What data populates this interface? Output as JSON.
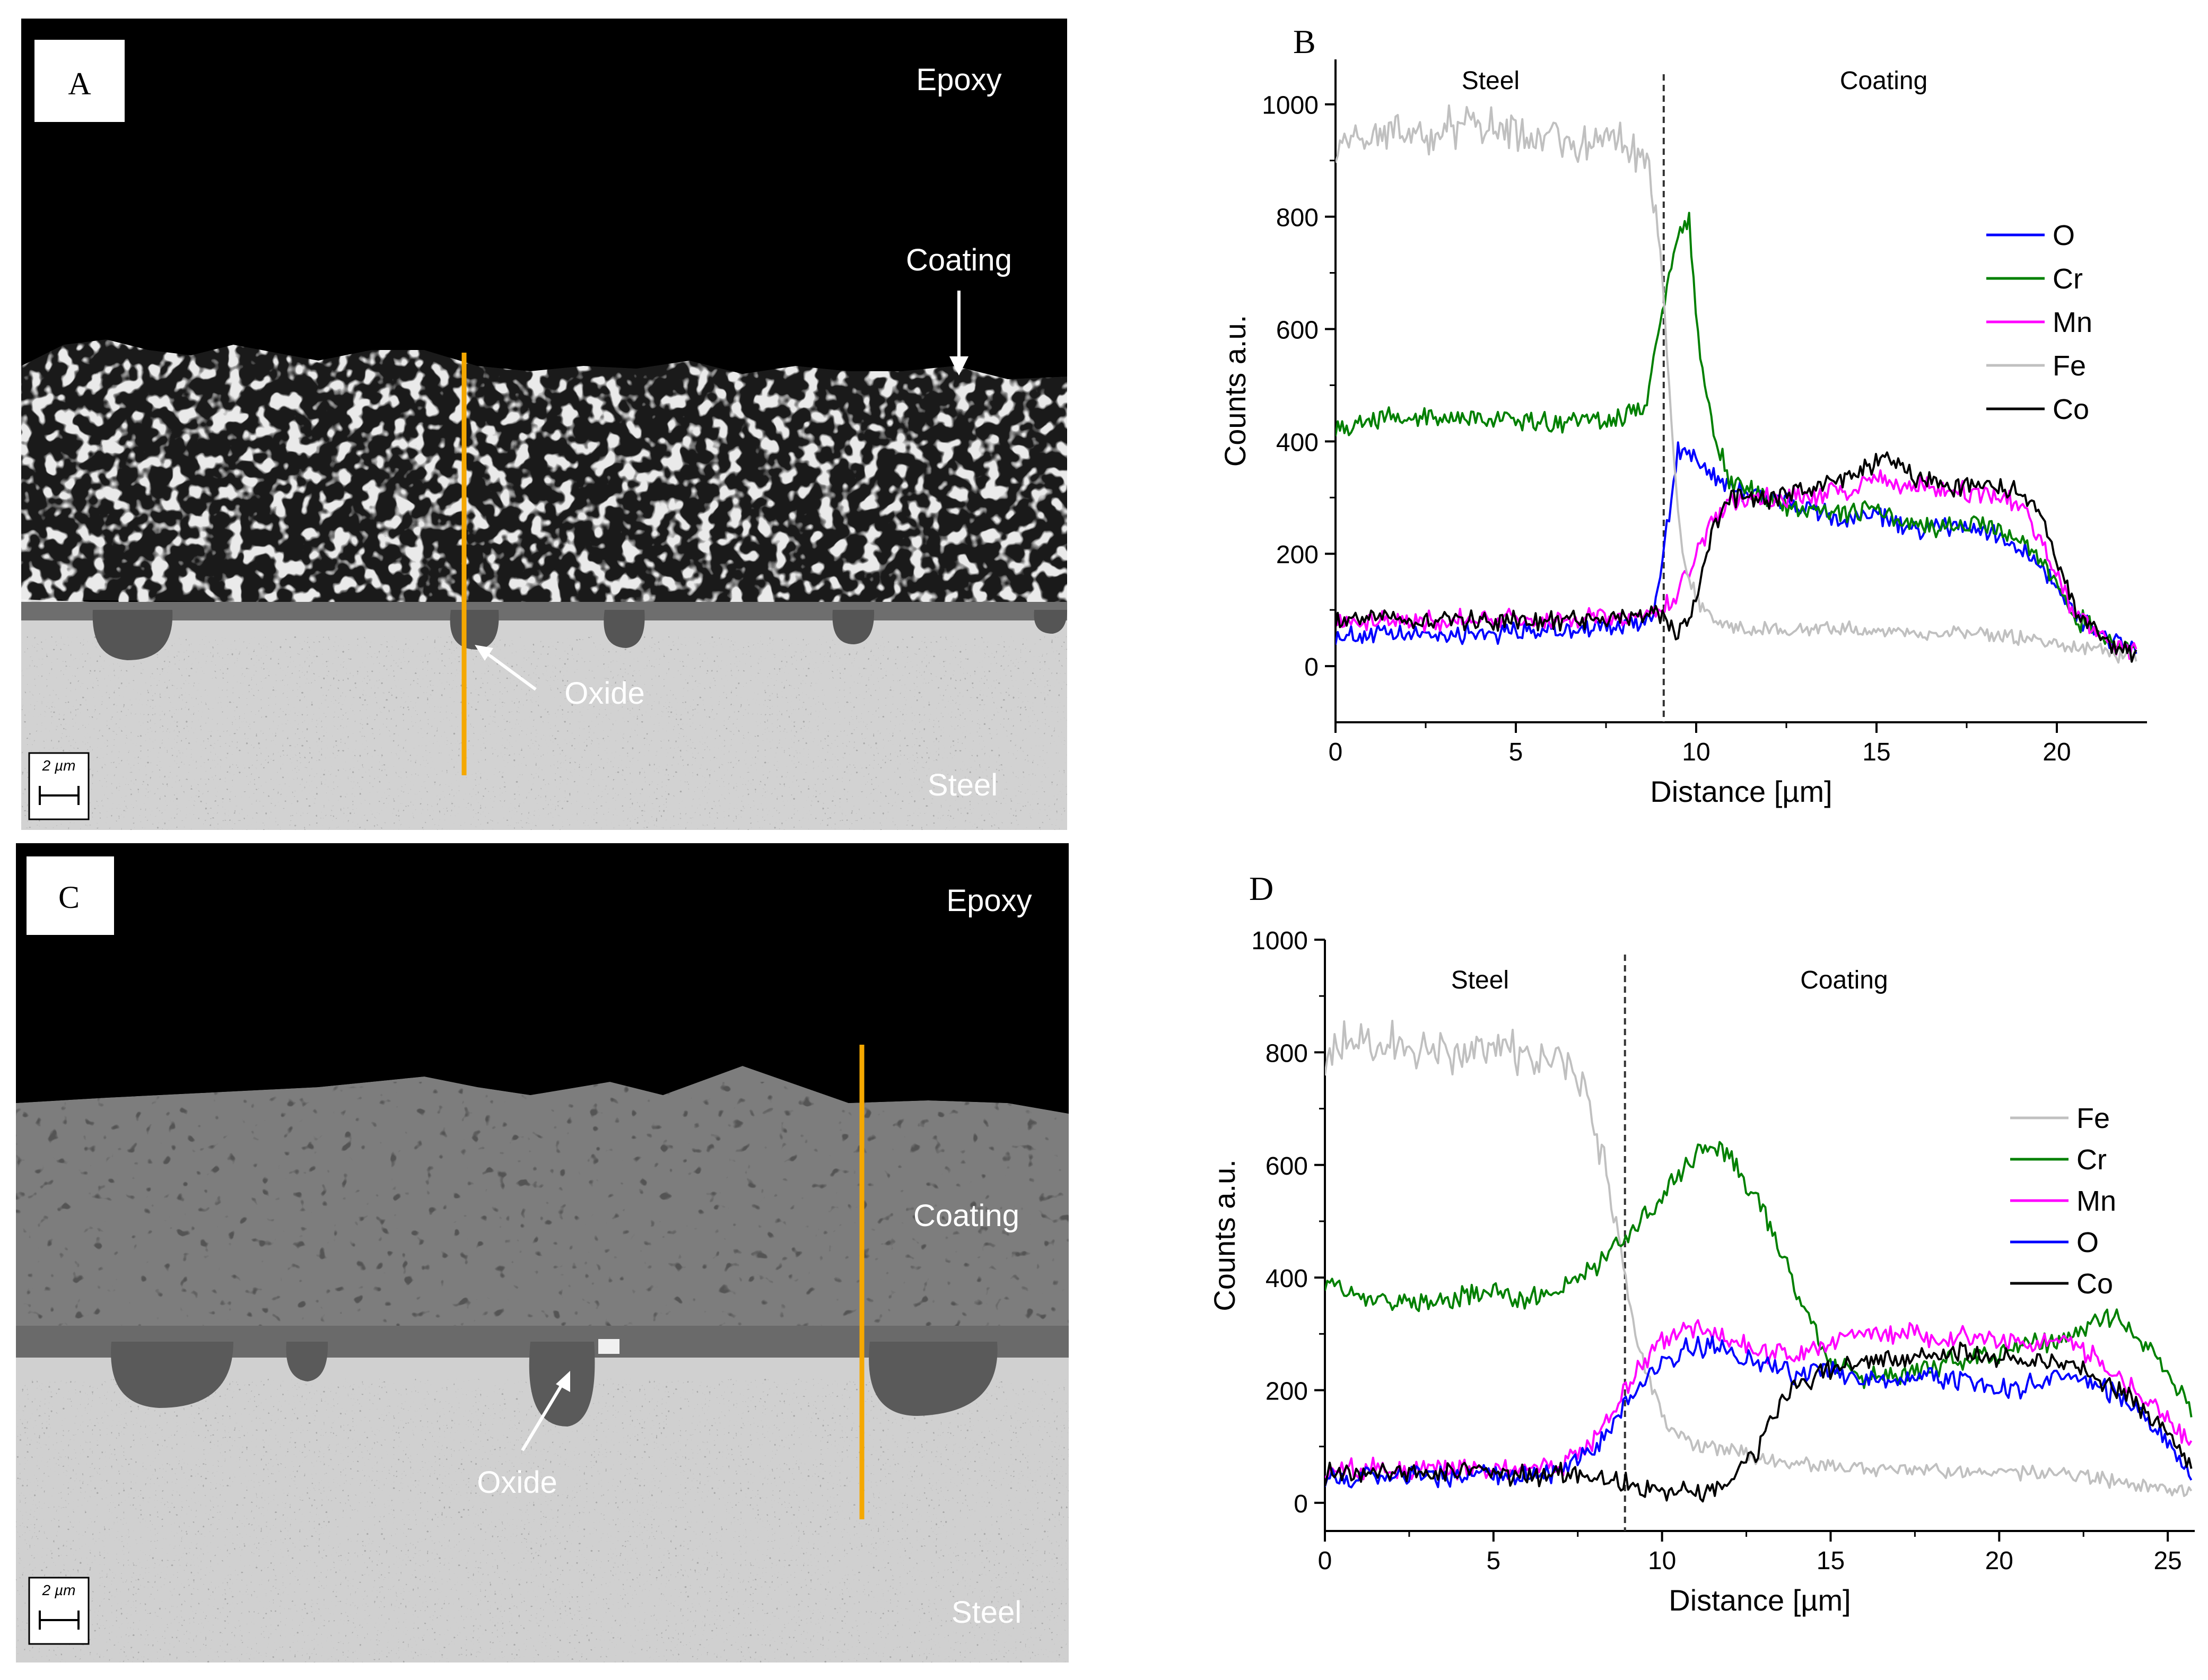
{
  "figure": {
    "panels": {
      "A": {
        "letter": "A",
        "labels": {
          "epoxy": "Epoxy",
          "coating": "Coating",
          "oxide": "Oxide",
          "steel": "Steel"
        },
        "scale_bar": "2 µm"
      },
      "C": {
        "letter": "C",
        "labels": {
          "epoxy": "Epoxy",
          "coating": "Coating",
          "oxide": "Oxide",
          "steel": "Steel"
        },
        "scale_bar": "2 µm"
      }
    },
    "colors": {
      "O": "#0000ff",
      "Cr": "#008000",
      "Mn": "#ff00ff",
      "Fe": "#c0c0c0",
      "Co": "#000000",
      "linescan": "#f5a800"
    }
  },
  "chart_data": [
    {
      "panel": "B",
      "type": "line",
      "title": "",
      "xlabel": "Distance [µm]",
      "ylabel": "Counts a.u.",
      "xlim": [
        0,
        22.5
      ],
      "ylim": [
        -100,
        1080
      ],
      "xticks": [
        0,
        5,
        10,
        15,
        20
      ],
      "yticks": [
        0,
        200,
        400,
        600,
        800,
        1000
      ],
      "interface_x": 9.1,
      "regions": [
        {
          "label": "Steel",
          "x": 4.3
        },
        {
          "label": "Coating",
          "x": 15.2
        }
      ],
      "legend_position": "right",
      "series": [
        {
          "name": "O",
          "color": "#0000ff",
          "x": [
            0,
            2,
            4,
            6,
            8,
            8.8,
            9.2,
            9.5,
            10.2,
            11,
            12,
            13,
            14,
            15,
            16,
            17,
            18,
            19,
            19.5,
            20.5,
            21.5,
            22.2
          ],
          "y": [
            55,
            55,
            60,
            62,
            70,
            90,
            250,
            390,
            350,
            320,
            300,
            280,
            260,
            270,
            240,
            250,
            240,
            210,
            190,
            90,
            50,
            30
          ]
        },
        {
          "name": "Cr",
          "color": "#008000",
          "x": [
            0,
            2,
            4,
            6,
            8,
            8.6,
            9.0,
            9.4,
            9.8,
            10.1,
            10.6,
            11,
            12,
            13,
            14,
            15,
            16,
            17,
            18,
            19,
            19.6,
            20.5,
            21.5,
            22.2
          ],
          "y": [
            430,
            445,
            440,
            435,
            440,
            470,
            600,
            760,
            790,
            550,
            390,
            320,
            300,
            280,
            270,
            280,
            250,
            250,
            250,
            230,
            190,
            90,
            40,
            25
          ]
        },
        {
          "name": "Mn",
          "color": "#ff00ff",
          "x": [
            0,
            2,
            4,
            6,
            8,
            9,
            9.5,
            10,
            10.5,
            11,
            12,
            13,
            14,
            15,
            16,
            17,
            18,
            19,
            19.6,
            20.5,
            21.5,
            22.2
          ],
          "y": [
            80,
            80,
            82,
            80,
            85,
            95,
            130,
            200,
            260,
            290,
            300,
            300,
            310,
            330,
            320,
            310,
            310,
            290,
            210,
            90,
            40,
            30
          ]
        },
        {
          "name": "Fe",
          "color": "#c0c0c0",
          "x": [
            0,
            1,
            2,
            3,
            4,
            5,
            6,
            7,
            8,
            8.7,
            9.0,
            9.3,
            9.6,
            10,
            10.5,
            11,
            12,
            14,
            16,
            18,
            20,
            21,
            22.2
          ],
          "y": [
            920,
            950,
            940,
            955,
            960,
            945,
            935,
            930,
            940,
            900,
            750,
            450,
            200,
            120,
            80,
            70,
            65,
            65,
            60,
            60,
            40,
            30,
            15
          ]
        },
        {
          "name": "Co",
          "color": "#000000",
          "x": [
            0,
            2,
            4,
            6,
            8,
            8.8,
            9.5,
            10,
            10.5,
            11,
            12,
            13,
            14,
            15,
            15.5,
            16,
            17,
            18,
            19,
            19.6,
            20.5,
            21.5,
            22.2
          ],
          "y": [
            85,
            85,
            80,
            80,
            85,
            95,
            60,
            120,
            250,
            300,
            300,
            310,
            330,
            360,
            370,
            340,
            320,
            320,
            310,
            270,
            100,
            45,
            20
          ]
        }
      ]
    },
    {
      "panel": "D",
      "type": "line",
      "title": "",
      "xlabel": "Distance [µm]",
      "ylabel": "Counts a.u.",
      "xlim": [
        0,
        25.8
      ],
      "ylim": [
        -50,
        1000
      ],
      "xticks": [
        0,
        5,
        10,
        15,
        20,
        25
      ],
      "yticks": [
        0,
        200,
        400,
        600,
        800,
        1000
      ],
      "interface_x": 8.9,
      "regions": [
        {
          "label": "Steel",
          "x": 4.6
        },
        {
          "label": "Coating",
          "x": 15.4
        }
      ],
      "legend_position": "right",
      "series": [
        {
          "name": "Fe",
          "color": "#c0c0c0",
          "x": [
            0,
            1,
            2,
            3,
            4,
            5,
            6,
            7,
            7.7,
            8.2,
            8.7,
            9.2,
            9.7,
            10.2,
            11,
            12,
            13,
            14,
            16,
            18,
            20,
            22,
            24,
            25.7
          ],
          "y": [
            800,
            825,
            815,
            800,
            790,
            820,
            790,
            780,
            740,
            620,
            480,
            300,
            200,
            130,
            100,
            90,
            80,
            70,
            60,
            55,
            55,
            50,
            35,
            20
          ]
        },
        {
          "name": "Cr",
          "color": "#008000",
          "x": [
            0,
            1,
            2,
            3,
            4,
            5,
            6,
            7,
            8,
            9,
            9.8,
            10.5,
            11.2,
            12,
            13,
            14,
            15,
            16,
            17,
            18,
            19,
            20,
            21,
            22,
            22.8,
            23.5,
            24.5,
            25.7
          ],
          "y": [
            385,
            370,
            360,
            355,
            365,
            370,
            360,
            380,
            420,
            470,
            530,
            580,
            630,
            620,
            520,
            380,
            250,
            220,
            230,
            240,
            260,
            270,
            280,
            290,
            320,
            330,
            270,
            160
          ]
        },
        {
          "name": "Mn",
          "color": "#ff00ff",
          "x": [
            0,
            2,
            4,
            6,
            7,
            8,
            9,
            10,
            11,
            12,
            13,
            14,
            15,
            16,
            17,
            18,
            19,
            20,
            21,
            22,
            23,
            24,
            25,
            25.7
          ],
          "y": [
            60,
            62,
            62,
            60,
            65,
            110,
            210,
            290,
            310,
            290,
            270,
            260,
            290,
            300,
            300,
            295,
            300,
            285,
            280,
            290,
            250,
            200,
            150,
            100
          ]
        },
        {
          "name": "O",
          "color": "#0000ff",
          "x": [
            0,
            2,
            4,
            6,
            7,
            8,
            9,
            10,
            11,
            12,
            13,
            14,
            15,
            16,
            17,
            18,
            19,
            20,
            21,
            22,
            23,
            24,
            25,
            25.7
          ],
          "y": [
            45,
            48,
            50,
            50,
            55,
            100,
            180,
            250,
            280,
            270,
            240,
            230,
            230,
            220,
            215,
            225,
            220,
            200,
            210,
            230,
            210,
            170,
            110,
            40
          ]
        },
        {
          "name": "Co",
          "color": "#000000",
          "x": [
            0,
            2,
            4,
            6,
            7,
            8,
            9,
            10,
            11,
            12,
            12.8,
            13.5,
            14,
            15,
            16,
            17,
            18,
            19,
            20,
            21,
            22,
            23,
            24,
            25,
            25.7
          ],
          "y": [
            50,
            52,
            52,
            50,
            50,
            45,
            35,
            20,
            15,
            40,
            90,
            170,
            210,
            240,
            250,
            255,
            260,
            265,
            260,
            250,
            250,
            220,
            180,
            130,
            70
          ]
        }
      ]
    }
  ]
}
